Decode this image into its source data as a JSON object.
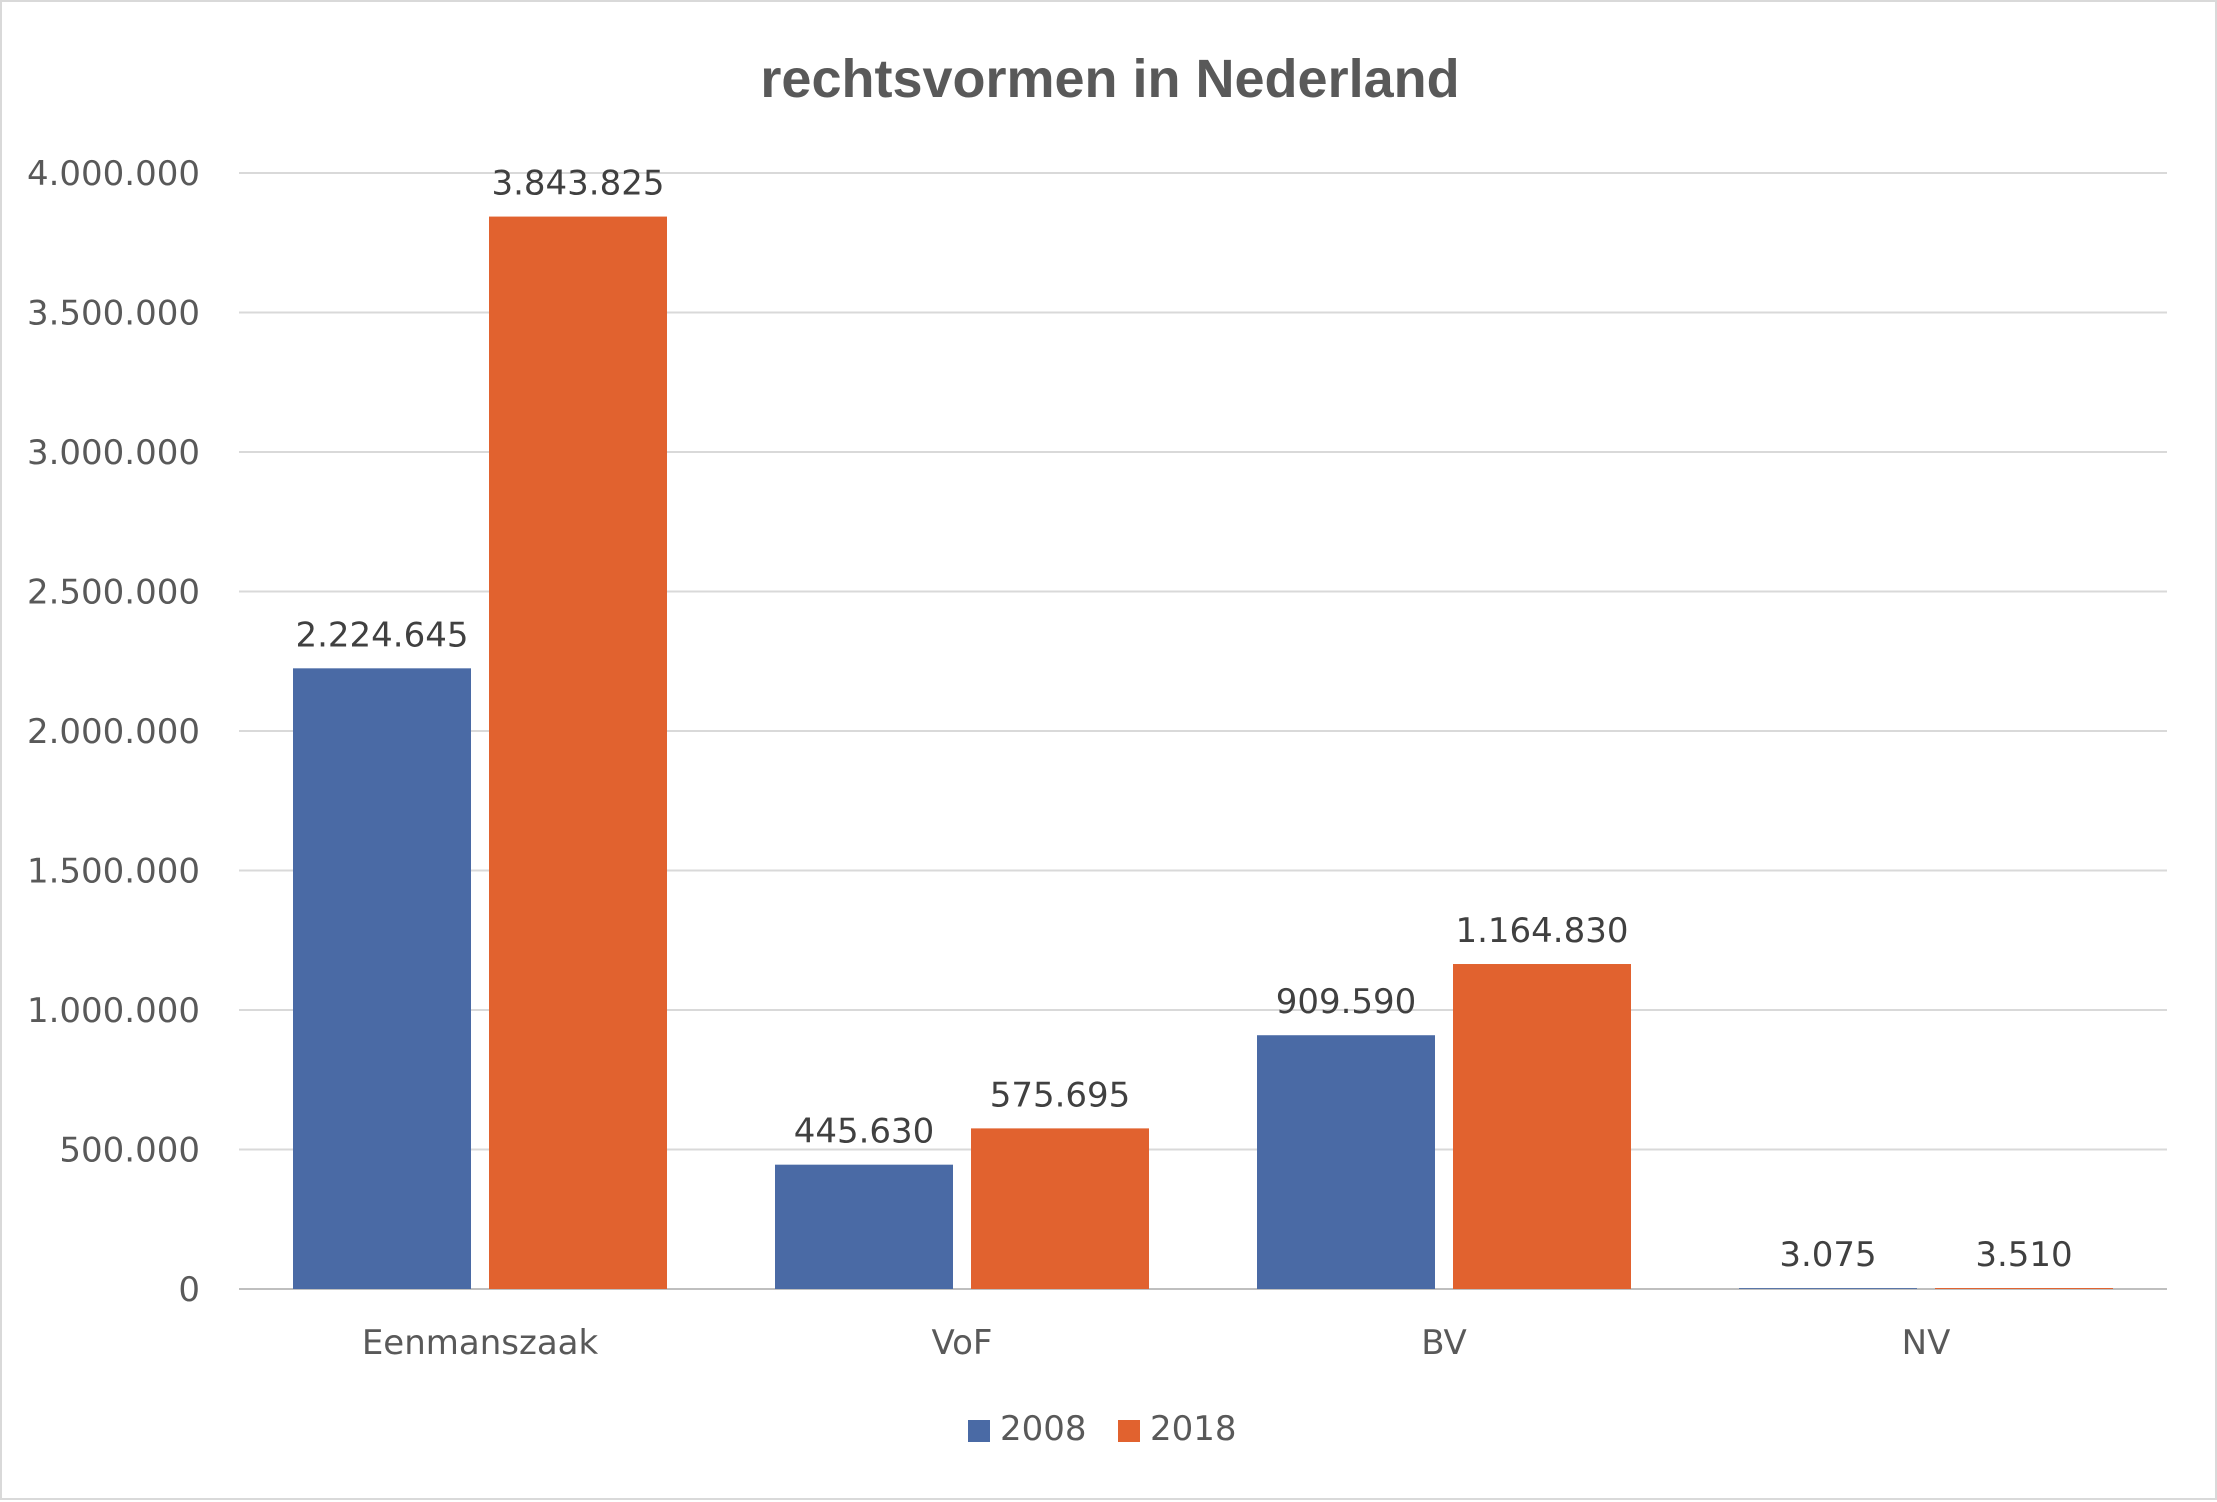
{
  "chart_data": {
    "type": "bar",
    "title": "rechtsvormen in Nederland",
    "xlabel": "",
    "ylabel": "",
    "categories": [
      "Eenmanszaak",
      "VoF",
      "BV",
      "NV"
    ],
    "series": [
      {
        "name": "2008",
        "color": "#4a6aa5",
        "values": [
          2224645,
          445630,
          909590,
          3075
        ],
        "labels": [
          "2.224.645",
          "445.630",
          "909.590",
          "3.075"
        ]
      },
      {
        "name": "2018",
        "color": "#e1622f",
        "values": [
          3843825,
          575695,
          1164830,
          3510
        ],
        "labels": [
          "3.843.825",
          "575.695",
          "1.164.830",
          "3.510"
        ]
      }
    ],
    "ylim": [
      0,
      4000000
    ],
    "yticks": [
      0,
      500000,
      1000000,
      1500000,
      2000000,
      2500000,
      3000000,
      3500000,
      4000000
    ],
    "ytick_labels": [
      "0",
      "500.000",
      "1.000.000",
      "1.500.000",
      "2.000.000",
      "2.500.000",
      "3.000.000",
      "3.500.000",
      "4.000.000"
    ],
    "grid": true,
    "legend_position": "bottom"
  }
}
